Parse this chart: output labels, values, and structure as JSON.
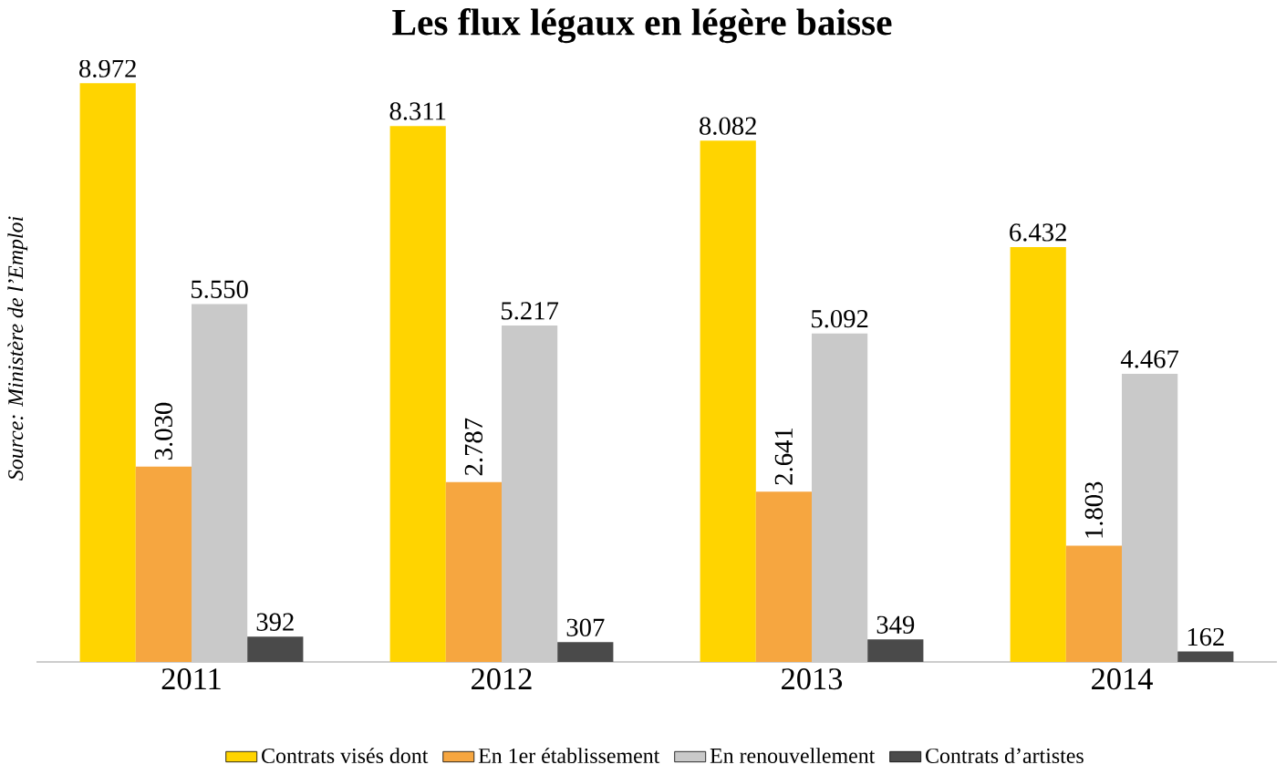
{
  "chart_data": {
    "type": "bar",
    "title": "Les flux légaux en légère baisse",
    "categories": [
      "2011",
      "2012",
      "2013",
      "2014"
    ],
    "series": [
      {
        "name": "Contrats visés dont",
        "color": "#ffd400",
        "values": [
          8972,
          8311,
          8082,
          6432
        ],
        "value_labels": [
          "8.972",
          "8.311",
          "8.082",
          "6.432"
        ]
      },
      {
        "name": "En 1er établissement",
        "color": "#f6a640",
        "values": [
          3030,
          2787,
          2641,
          1803
        ],
        "value_labels": [
          "3.030",
          "2.787",
          "2.641",
          "1.803"
        ]
      },
      {
        "name": "En renouvellement",
        "color": "#c9c9c9",
        "values": [
          5550,
          5217,
          5092,
          4467
        ],
        "value_labels": [
          "5.550",
          "5.217",
          "5.092",
          "4.467"
        ]
      },
      {
        "name": "Contrats d’artistes",
        "color": "#4a4a4a",
        "values": [
          392,
          307,
          349,
          162
        ],
        "value_labels": [
          "392",
          "307",
          "349",
          "162"
        ]
      }
    ],
    "annotations": [
      "Source: Ministère de l’Emploi"
    ],
    "legend": "bottom"
  }
}
